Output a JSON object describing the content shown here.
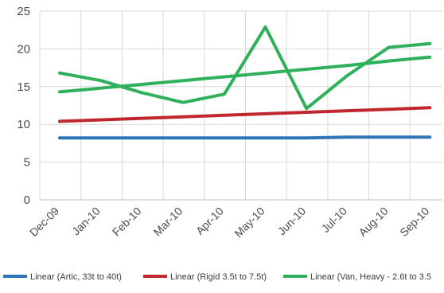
{
  "chart_data": {
    "type": "line",
    "categories": [
      "Dec-09",
      "Jan-10",
      "Feb-10",
      "Mar-10",
      "Apr-10",
      "May-10",
      "Jun-10",
      "Jul-10",
      "Aug-10",
      "Sep-10"
    ],
    "ylim": [
      0,
      25
    ],
    "yticks": [
      0,
      5,
      10,
      15,
      20,
      25
    ],
    "grid": true,
    "legend_position": "bottom",
    "series": [
      {
        "name": "Linear (Artic, 33t to 40t)",
        "color": "#2e75b6",
        "values": [
          8.2,
          8.2,
          8.2,
          8.2,
          8.2,
          8.2,
          8.2,
          8.3,
          8.3,
          8.3
        ]
      },
      {
        "name": "Linear (Rigid 3.5t to 7.5t)",
        "color": "#c0282d",
        "values": [
          10.4,
          10.6,
          10.8,
          11.0,
          11.2,
          11.4,
          11.6,
          11.8,
          12.0,
          12.2
        ]
      },
      {
        "name": "",
        "color": "#2fb15b",
        "values": [
          14.3,
          14.8,
          15.3,
          15.8,
          16.3,
          16.8,
          17.3,
          17.8,
          18.4,
          18.9
        ]
      },
      {
        "name": "Linear (Van, Heavy - 2.6t to 3.5",
        "color": "#2fb15b",
        "values": [
          16.8,
          15.8,
          14.2,
          12.9,
          14.0,
          22.9,
          12.1,
          16.5,
          20.2,
          20.7
        ]
      }
    ]
  }
}
